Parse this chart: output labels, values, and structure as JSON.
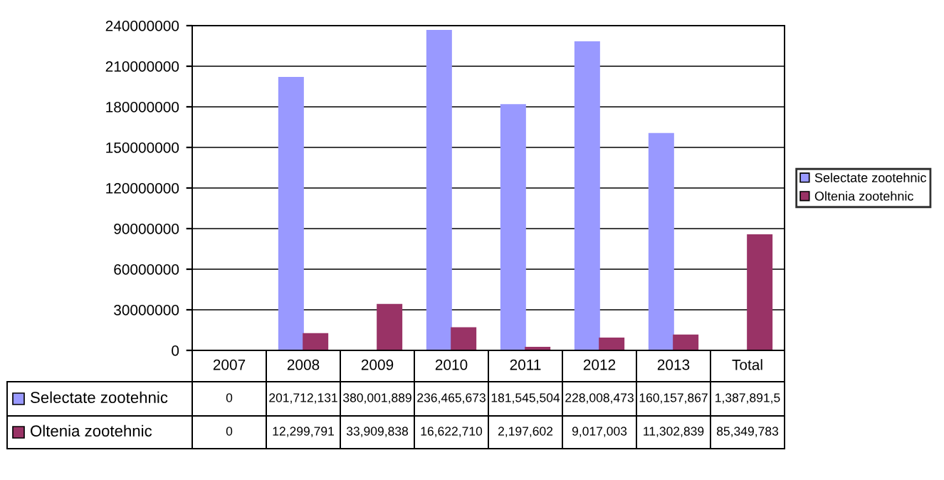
{
  "chart_data": {
    "type": "bar",
    "categories": [
      "2007",
      "2008",
      "2009",
      "2010",
      "2011",
      "2012",
      "2013",
      "Total"
    ],
    "series": [
      {
        "name": "Selectate zootehnic",
        "color": "#9999ff",
        "values": [
          0,
          201712131,
          null,
          236465673,
          181545504,
          228008473,
          160157867,
          null
        ],
        "value_labels": [
          "0",
          "201,712,131",
          "380,001,889",
          "236,465,673",
          "181,545,504",
          "228,008,473",
          "160,157,867",
          "1,387,891,5"
        ]
      },
      {
        "name": "Oltenia zootehnic",
        "color": "#993366",
        "values": [
          0,
          12299791,
          33909838,
          16622710,
          2197602,
          9017003,
          11302839,
          85349783
        ],
        "value_labels": [
          "0",
          "12,299,791",
          "33,909,838",
          "16,622,710",
          "2,197,602",
          "9,017,003",
          "11,302,839",
          "85,349,783"
        ]
      }
    ],
    "ylim": [
      0,
      240000000
    ],
    "yticks": [
      0,
      30000000,
      60000000,
      90000000,
      120000000,
      150000000,
      180000000,
      210000000,
      240000000
    ],
    "grid": "y",
    "legend": "right"
  }
}
